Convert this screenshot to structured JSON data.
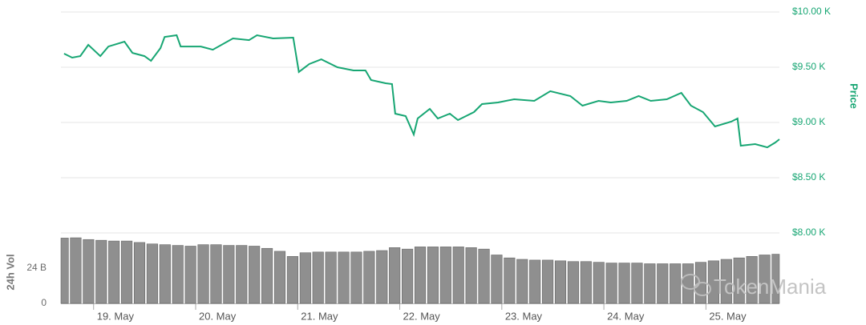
{
  "chart_data": [
    {
      "type": "line",
      "y_axis_title": "Price",
      "color": "#17a673",
      "xlim": [
        18.68,
        25.72
      ],
      "ylim": [
        8000,
        10000
      ],
      "yticks": [
        {
          "value": 10000,
          "label": "$10.00 K"
        },
        {
          "value": 9500,
          "label": "$9.50 K"
        },
        {
          "value": 9000,
          "label": "$9.00 K"
        },
        {
          "value": 8500,
          "label": "$8.50 K"
        },
        {
          "value": 8000,
          "label": "$8.00 K"
        }
      ],
      "grid": true,
      "series": [
        {
          "name": "Price",
          "color": "#17a673",
          "x": [
            18.711,
            18.79,
            18.869,
            18.948,
            19.066,
            19.145,
            19.302,
            19.381,
            19.499,
            19.562,
            19.656,
            19.696,
            19.814,
            19.853,
            20.05,
            20.168,
            20.365,
            20.523,
            20.601,
            20.759,
            20.956,
            21.011,
            21.113,
            21.231,
            21.389,
            21.546,
            21.664,
            21.719,
            21.861,
            21.924,
            21.956,
            22.058,
            22.137,
            22.176,
            22.294,
            22.373,
            22.491,
            22.57,
            22.727,
            22.806,
            22.963,
            23.121,
            23.318,
            23.475,
            23.672,
            23.79,
            23.948,
            24.066,
            24.223,
            24.341,
            24.46,
            24.617,
            24.759,
            24.853,
            24.971,
            25.089,
            25.247,
            25.31,
            25.341,
            25.483,
            25.601,
            25.68,
            25.72
          ],
          "values": [
            9623,
            9587,
            9601,
            9703,
            9601,
            9688,
            9732,
            9630,
            9601,
            9558,
            9674,
            9775,
            9790,
            9688,
            9688,
            9659,
            9761,
            9746,
            9790,
            9761,
            9768,
            9457,
            9529,
            9572,
            9500,
            9471,
            9471,
            9384,
            9355,
            9348,
            9080,
            9058,
            8891,
            9036,
            9123,
            9036,
            9080,
            9022,
            9094,
            9167,
            9181,
            9210,
            9196,
            9283,
            9239,
            9152,
            9196,
            9181,
            9196,
            9239,
            9196,
            9210,
            9268,
            9152,
            9094,
            8964,
            9007,
            9036,
            8790,
            8804,
            8775,
            8819,
            8848
          ]
        }
      ]
    },
    {
      "type": "bar",
      "y_axis_title": "24h Vol",
      "color": "#8f8f8f",
      "xlim": [
        18.68,
        25.72
      ],
      "ylim": [
        0,
        48
      ],
      "yticks": [
        0,
        {
          "value": 24,
          "label": "24 B"
        }
      ],
      "xticks": [
        {
          "value": 19,
          "label": "19. May"
        },
        {
          "value": 20,
          "label": "20. May"
        },
        {
          "value": 21,
          "label": "21. May"
        },
        {
          "value": 22,
          "label": "22. May"
        },
        {
          "value": 23,
          "label": "23. May"
        },
        {
          "value": 24,
          "label": "24. May"
        },
        {
          "value": 25,
          "label": "25. May"
        }
      ],
      "x": [
        18.7,
        18.825,
        18.95,
        19.075,
        19.2,
        19.325,
        19.45,
        19.575,
        19.7,
        19.825,
        19.95,
        20.075,
        20.2,
        20.325,
        20.45,
        20.575,
        20.7,
        20.825,
        20.95,
        21.075,
        21.2,
        21.325,
        21.45,
        21.575,
        21.7,
        21.825,
        21.95,
        22.075,
        22.2,
        22.325,
        22.45,
        22.575,
        22.7,
        22.825,
        22.95,
        23.075,
        23.2,
        23.325,
        23.45,
        23.575,
        23.7,
        23.825,
        23.95,
        24.075,
        24.2,
        24.325,
        24.45,
        24.575,
        24.7,
        24.825,
        24.95,
        25.075,
        25.2,
        25.325,
        25.45,
        25.575,
        25.7
      ],
      "values": [
        44.5,
        44.7,
        43.5,
        43,
        42.5,
        42.5,
        41.5,
        40.5,
        40,
        39.5,
        39,
        40,
        40,
        39.5,
        39.5,
        39,
        37.5,
        35.5,
        32,
        34.5,
        35,
        35,
        35,
        35,
        35.5,
        36,
        38,
        37,
        38.5,
        38.5,
        38.5,
        38.5,
        38,
        37,
        33,
        31,
        30,
        29.5,
        29.5,
        29,
        28.5,
        28.5,
        28,
        27.5,
        27.5,
        27.5,
        27,
        27,
        27,
        27,
        28,
        29,
        30,
        31,
        32,
        33,
        33.5
      ]
    }
  ],
  "watermark": "TokenMania"
}
